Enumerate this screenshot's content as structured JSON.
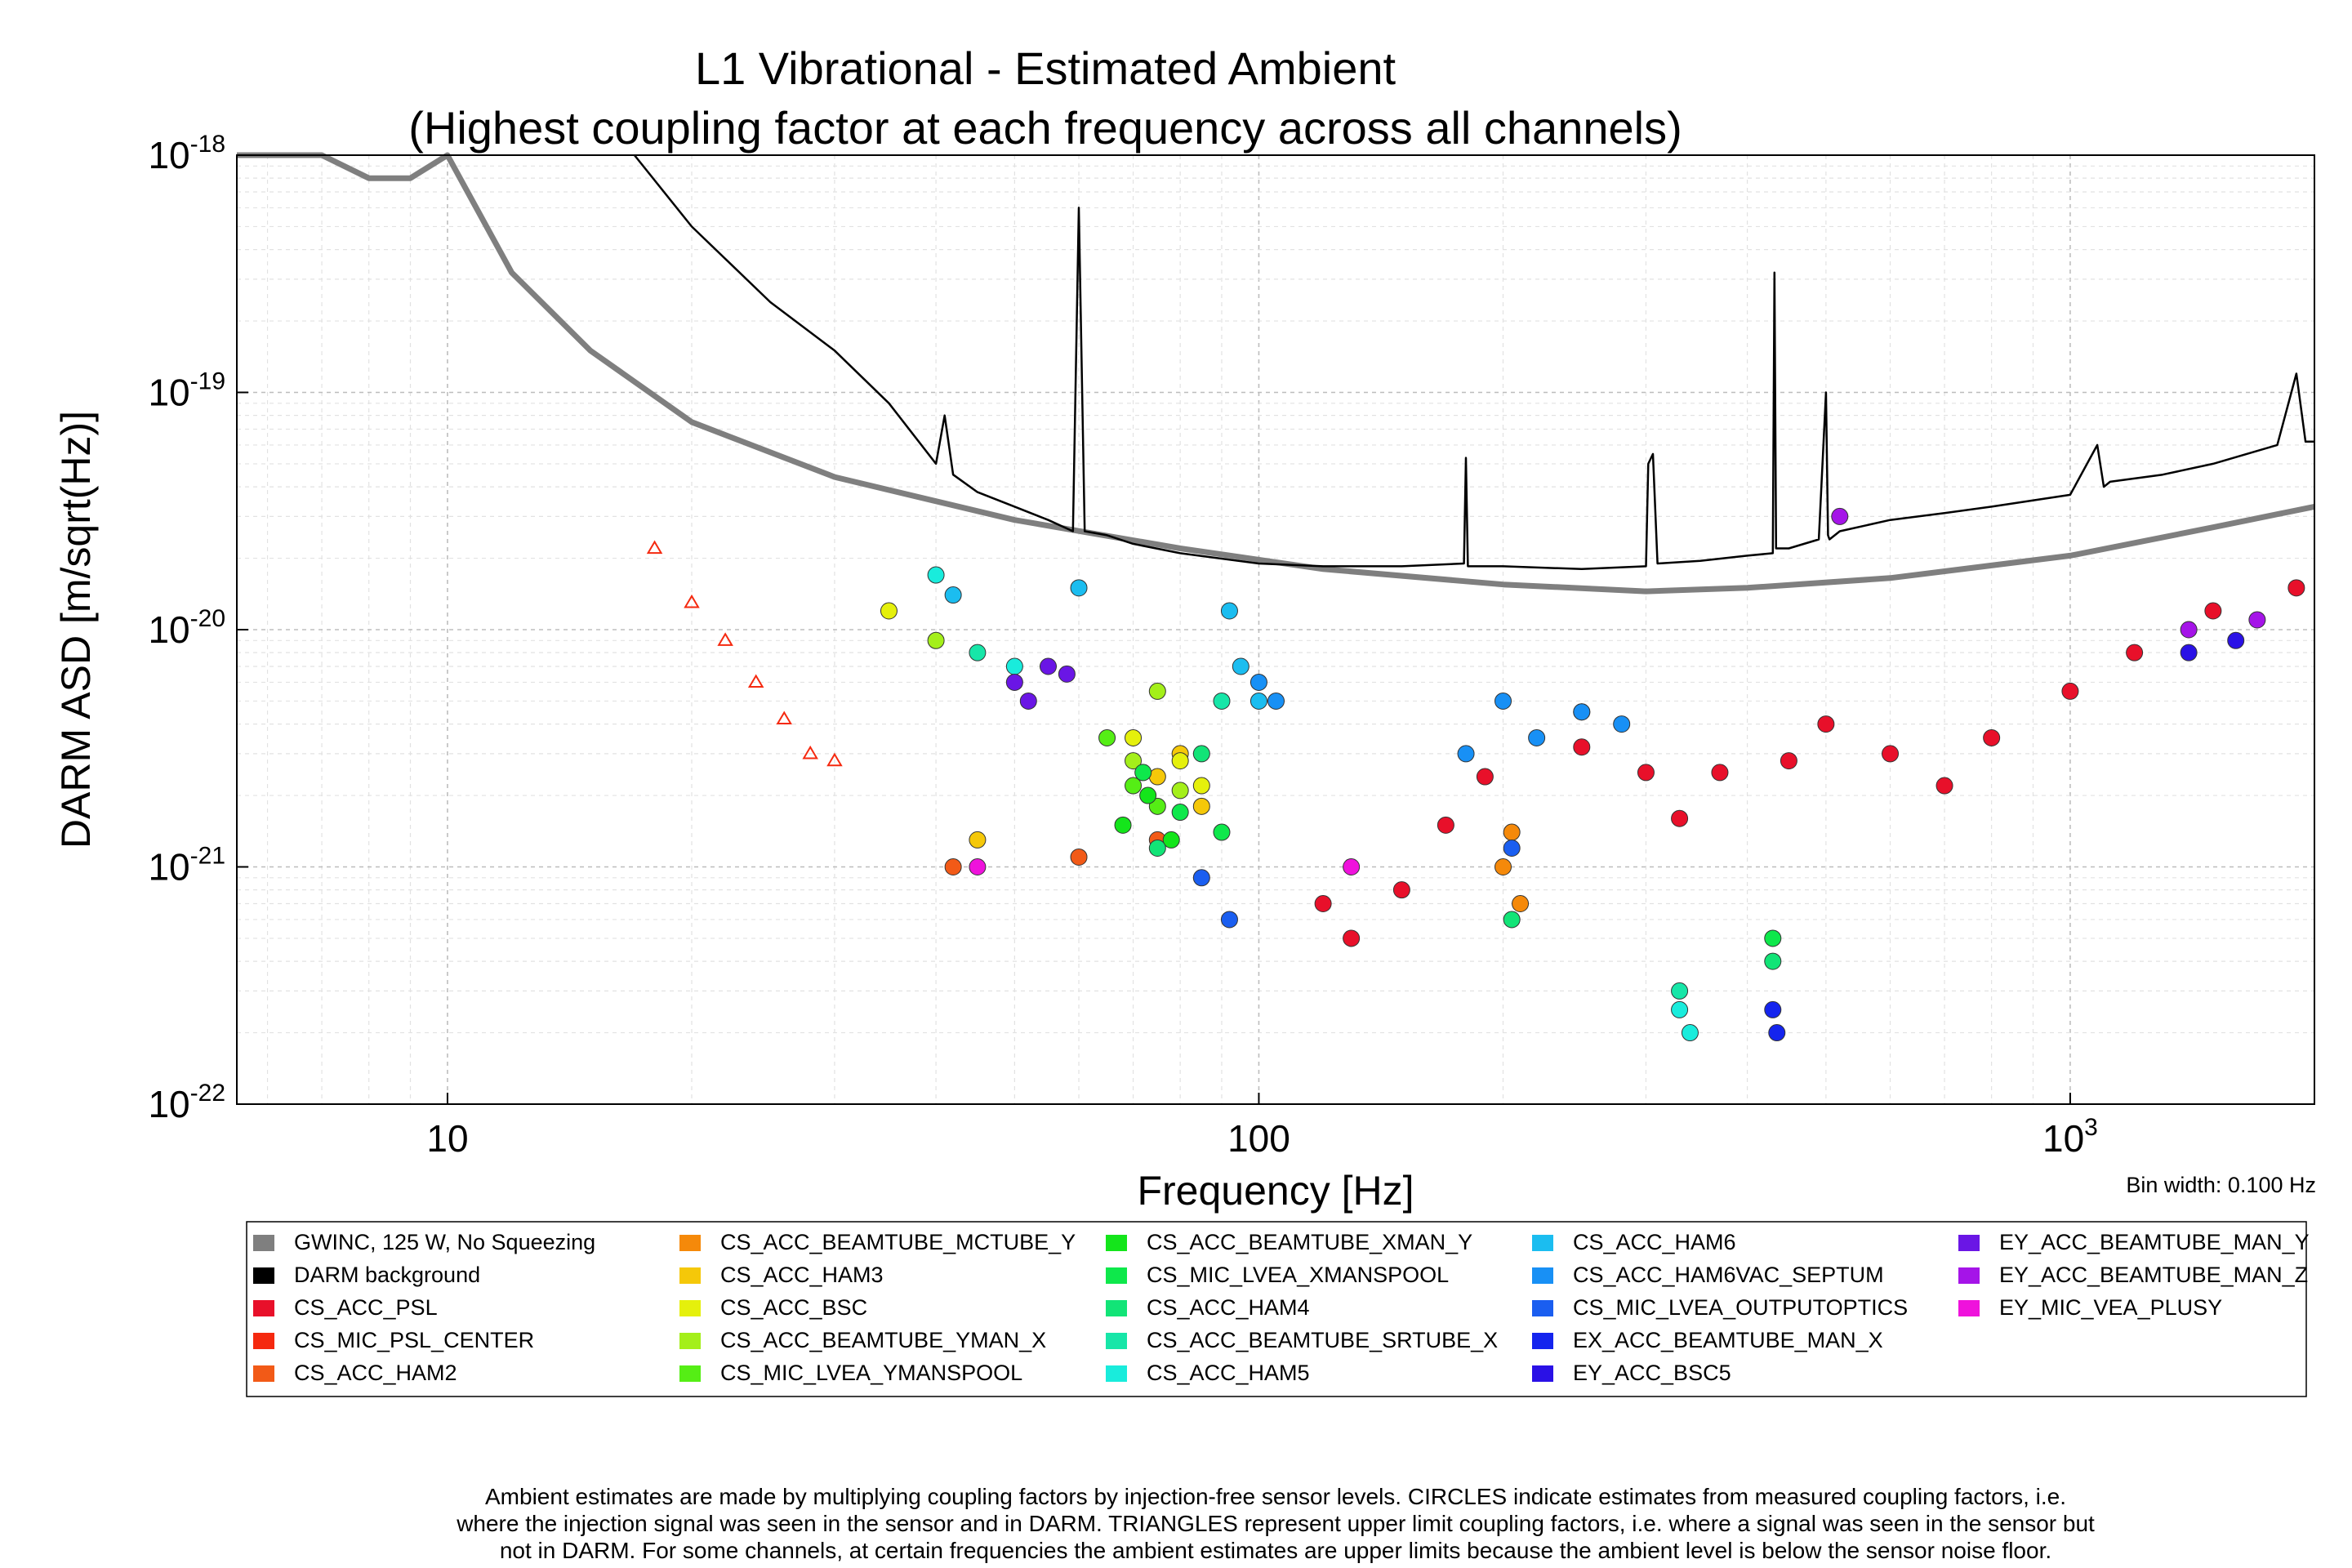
{
  "chart_data": {
    "type": "scatter",
    "title": [
      "L1 Vibrational - Estimated Ambient",
      "(Highest coupling factor at each frequency across all channels)"
    ],
    "xlabel": "Frequency [Hz]",
    "ylabel": "DARM ASD [m/sqrt(Hz)]",
    "xscale": "log",
    "yscale": "log",
    "xlim": [
      5.5,
      2000
    ],
    "ylim": [
      1e-22,
      1e-18
    ],
    "grid": true,
    "x_ticks": [
      {
        "value": 10,
        "base": "10",
        "exp": ""
      },
      {
        "value": 100,
        "base": "100",
        "exp": ""
      },
      {
        "value": 1000,
        "base": "10",
        "exp": "3"
      }
    ],
    "y_ticks": [
      {
        "value": 1e-18,
        "base": "10",
        "exp": "-18"
      },
      {
        "value": 1e-19,
        "base": "10",
        "exp": "-19"
      },
      {
        "value": 1e-20,
        "base": "10",
        "exp": "-20"
      },
      {
        "value": 1e-21,
        "base": "10",
        "exp": "-21"
      },
      {
        "value": 1e-22,
        "base": "10",
        "exp": "-22"
      }
    ],
    "bin_width_note": "Bin width: 0.100 Hz",
    "legend_placement": "below-plot",
    "series": [
      {
        "name": "GWINC, 125 W, No Squeezing",
        "color": "#7f7f7f",
        "kind": "line",
        "x": [
          5.5,
          7,
          8,
          9,
          10,
          12,
          15,
          20,
          30,
          50,
          80,
          120,
          200,
          300,
          400,
          600,
          1000,
          1500,
          2000
        ],
        "y": [
          1e-18,
          1e-18,
          8e-19,
          8e-19,
          1e-18,
          3.2e-19,
          1.5e-19,
          7.5e-20,
          4.4e-20,
          2.9e-20,
          2.2e-20,
          1.8e-20,
          1.55e-20,
          1.45e-20,
          1.5e-20,
          1.65e-20,
          2.05e-20,
          2.7e-20,
          3.3e-20
        ]
      },
      {
        "name": "DARM background",
        "color": "#000000",
        "kind": "line",
        "x": [
          17,
          20,
          25,
          30,
          35,
          40,
          41,
          42,
          45,
          50,
          55,
          59,
          60,
          61,
          65,
          70,
          80,
          100,
          120,
          150,
          179,
          180,
          181,
          200,
          250,
          300,
          302,
          306,
          310,
          350,
          400,
          430,
          432,
          434,
          450,
          490,
          500,
          503,
          505,
          520,
          600,
          700,
          800,
          1000,
          1080,
          1100,
          1120,
          1300,
          1500,
          1800,
          1900,
          1950,
          2000
        ],
        "y": [
          1e-18,
          5e-19,
          2.4e-19,
          1.5e-19,
          9e-20,
          5e-20,
          8e-20,
          4.5e-20,
          3.8e-20,
          3.3e-20,
          2.9e-20,
          2.6e-20,
          6e-19,
          2.6e-20,
          2.5e-20,
          2.3e-20,
          2.1e-20,
          1.9e-20,
          1.85e-20,
          1.85e-20,
          1.9e-20,
          5.3e-20,
          1.85e-20,
          1.85e-20,
          1.8e-20,
          1.85e-20,
          5e-20,
          5.5e-20,
          1.9e-20,
          1.95e-20,
          2.05e-20,
          2.1e-20,
          3.2e-19,
          2.2e-20,
          2.2e-20,
          2.4e-20,
          1e-19,
          2.5e-20,
          2.4e-20,
          2.6e-20,
          2.9e-20,
          3.1e-20,
          3.3e-20,
          3.7e-20,
          6e-20,
          4e-20,
          4.2e-20,
          4.5e-20,
          5e-20,
          6e-20,
          1.2e-19,
          6.2e-20,
          6.2e-20
        ]
      },
      {
        "name": "CS_ACC_PSL",
        "color": "#e8102a",
        "x": [
          120,
          130,
          150,
          170,
          190,
          250,
          300,
          330,
          370,
          450,
          500,
          600,
          700,
          800,
          1000,
          1200,
          1500,
          1900
        ],
        "y": [
          7e-22,
          5e-22,
          8e-22,
          1.5e-21,
          2.4e-21,
          3.2e-21,
          2.5e-21,
          1.6e-21,
          2.5e-21,
          2.8e-21,
          4e-21,
          3e-21,
          2.2e-21,
          3.5e-21,
          5.5e-21,
          8e-21,
          1.2e-20,
          1.5e-20
        ]
      },
      {
        "name": "CS_MIC_PSL_CENTER",
        "color": "#f5290f",
        "x": [
          18,
          20,
          22,
          24,
          26,
          28,
          30
        ],
        "y": [
          2.2e-20,
          1.3e-20,
          9e-21,
          6e-21,
          4.2e-21,
          3e-21,
          2.8e-21
        ]
      },
      {
        "name": "CS_ACC_HAM2",
        "color": "#f25a17",
        "x": [
          42,
          60,
          75
        ],
        "y": [
          1e-21,
          1.1e-21,
          1.3e-21
        ]
      },
      {
        "name": "CS_ACC_BEAMTUBE_MCTUBE_Y",
        "color": "#f5890a",
        "x": [
          200,
          205,
          210
        ],
        "y": [
          1e-21,
          1.4e-21,
          7e-22
        ]
      },
      {
        "name": "CS_ACC_HAM3",
        "color": "#f5c809",
        "x": [
          45,
          75,
          80,
          85
        ],
        "y": [
          1.3e-21,
          2.4e-21,
          3e-21,
          1.8e-21
        ]
      },
      {
        "name": "CS_ACC_BSC",
        "color": "#e5f00c",
        "x": [
          35,
          70,
          80,
          85
        ],
        "y": [
          1.2e-20,
          3.5e-21,
          2.8e-21,
          2.2e-21
        ]
      },
      {
        "name": "CS_ACC_BEAMTUBE_YMAN_X",
        "color": "#a4ef1a",
        "x": [
          40,
          70,
          75,
          80
        ],
        "y": [
          9e-21,
          2.8e-21,
          5.5e-21,
          2.1e-21
        ]
      },
      {
        "name": "CS_MIC_LVEA_YMANSPOOL",
        "color": "#55ee15",
        "x": [
          65,
          70,
          75
        ],
        "y": [
          3.5e-21,
          2.2e-21,
          1.8e-21
        ]
      },
      {
        "name": "CS_ACC_BEAMTUBE_XMAN_Y",
        "color": "#14e51b",
        "x": [
          68,
          73,
          78
        ],
        "y": [
          1.5e-21,
          2e-21,
          1.3e-21
        ]
      },
      {
        "name": "CS_MIC_LVEA_XMANSPOOL",
        "color": "#0ee84b",
        "x": [
          72,
          80,
          90,
          430
        ],
        "y": [
          2.5e-21,
          1.7e-21,
          1.4e-21,
          5e-22
        ]
      },
      {
        "name": "CS_ACC_HAM4",
        "color": "#12e477",
        "x": [
          75,
          85,
          205,
          430
        ],
        "y": [
          1.2e-21,
          3e-21,
          6e-22,
          4e-22
        ]
      },
      {
        "name": "CS_ACC_BEAMTUBE_SRTUBE_X",
        "color": "#17e6a8",
        "x": [
          45,
          90,
          330
        ],
        "y": [
          8e-21,
          5e-21,
          3e-22
        ]
      },
      {
        "name": "CS_ACC_HAM5",
        "color": "#19ecdc",
        "x": [
          40,
          50,
          330,
          340
        ],
        "y": [
          1.7e-20,
          7e-21,
          2.5e-22,
          2e-22
        ]
      },
      {
        "name": "CS_ACC_HAM6",
        "color": "#1bbdf0",
        "x": [
          42,
          60,
          92,
          95,
          100,
          250
        ],
        "y": [
          1.4e-20,
          1.5e-20,
          1.2e-20,
          7e-21,
          5e-21,
          4.5e-21
        ]
      },
      {
        "name": "CS_ACC_HAM6VAC_SEPTUM",
        "color": "#1890f5",
        "x": [
          100,
          105,
          180,
          200,
          220,
          250,
          280
        ],
        "y": [
          6e-21,
          5e-21,
          3e-21,
          5e-21,
          3.5e-21,
          4.5e-21,
          4e-21
        ]
      },
      {
        "name": "CS_MIC_LVEA_OUTPUTOPTICS",
        "color": "#1a5ef0",
        "x": [
          85,
          92,
          205
        ],
        "y": [
          9e-22,
          6e-22,
          1.2e-21
        ]
      },
      {
        "name": "EX_ACC_BEAMTUBE_MAN_X",
        "color": "#1424ee",
        "x": [
          430,
          435
        ],
        "y": [
          2.5e-22,
          2e-22
        ]
      },
      {
        "name": "EY_ACC_BSC5",
        "color": "#2a11e6",
        "x": [
          1400,
          1600
        ],
        "y": [
          8e-21,
          9e-21
        ]
      },
      {
        "name": "EY_ACC_BEAMTUBE_MAN_Y",
        "color": "#6a16e5",
        "x": [
          50,
          52,
          55,
          58
        ],
        "y": [
          6e-21,
          5e-21,
          7e-21,
          6.5e-21
        ]
      },
      {
        "name": "EY_ACC_BEAMTUBE_MAN_Z",
        "color": "#a514e8",
        "x": [
          520,
          1400,
          1700
        ],
        "y": [
          3e-20,
          1e-20,
          1.1e-20
        ]
      },
      {
        "name": "EY_MIC_VEA_PLUSY",
        "color": "#ef12dc",
        "x": [
          45,
          130
        ],
        "y": [
          1e-21,
          1e-21
        ]
      }
    ]
  },
  "footnote": [
    "Ambient estimates are made by multiplying coupling factors by injection-free sensor levels. CIRCLES indicate estimates from measured coupling factors, i.e.",
    "where the injection signal was seen in the sensor and in DARM. TRIANGLES represent upper limit coupling factors, i.e. where a signal was seen in the sensor but",
    "not in DARM. For some channels, at certain frequencies the ambient estimates are upper limits because the ambient level is below the sensor noise floor."
  ]
}
